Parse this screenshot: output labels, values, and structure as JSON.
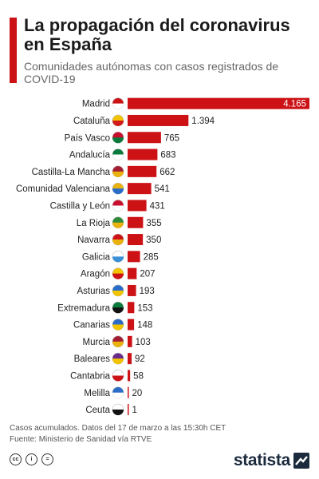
{
  "header": {
    "title": "La propagación del coronavirus en España",
    "subtitle": "Comunidades autónomas con casos registrados de COVID-19"
  },
  "colors": {
    "accent": "#cc1215",
    "bar": "#cc1215",
    "text": "#222222",
    "brand": "#1b2a3d"
  },
  "chart_data": {
    "type": "bar",
    "orientation": "horizontal",
    "categories": [
      "Madrid",
      "Cataluña",
      "País Vasco",
      "Andalucía",
      "Castilla-La Mancha",
      "Comunidad Valenciana",
      "Castilla y León",
      "La Rioja",
      "Navarra",
      "Galicia",
      "Aragón",
      "Asturias",
      "Extremadura",
      "Canarias",
      "Murcia",
      "Baleares",
      "Cantabria",
      "Melilla",
      "Ceuta"
    ],
    "values": [
      4165,
      1394,
      765,
      683,
      662,
      541,
      431,
      355,
      350,
      285,
      207,
      193,
      153,
      148,
      103,
      92,
      58,
      20,
      1
    ],
    "value_labels": [
      "4.165",
      "1.394",
      "765",
      "683",
      "662",
      "541",
      "431",
      "355",
      "350",
      "285",
      "207",
      "193",
      "153",
      "148",
      "103",
      "92",
      "58",
      "20",
      "1"
    ],
    "flag_icons": [
      "madrid-flag-icon",
      "cataluna-flag-icon",
      "pais-vasco-flag-icon",
      "andalucia-flag-icon",
      "castilla-la-mancha-flag-icon",
      "comunidad-valenciana-flag-icon",
      "castilla-y-leon-flag-icon",
      "la-rioja-flag-icon",
      "navarra-flag-icon",
      "galicia-flag-icon",
      "aragon-flag-icon",
      "asturias-flag-icon",
      "extremadura-flag-icon",
      "canarias-flag-icon",
      "murcia-flag-icon",
      "baleares-flag-icon",
      "cantabria-flag-icon",
      "melilla-flag-icon",
      "ceuta-flag-icon"
    ],
    "xlim": [
      0,
      4165
    ],
    "grid": false,
    "legend": "none"
  },
  "footer": {
    "note": "Casos acumulados. Datos del 17 de marzo a las 15:30h CET",
    "source": "Fuente: Ministerio de Sanidad vía RTVE",
    "license_icons": [
      "cc-icon",
      "by-icon",
      "nd-icon"
    ],
    "license_labels": [
      "cc",
      "i",
      "="
    ],
    "brand": "statista"
  }
}
